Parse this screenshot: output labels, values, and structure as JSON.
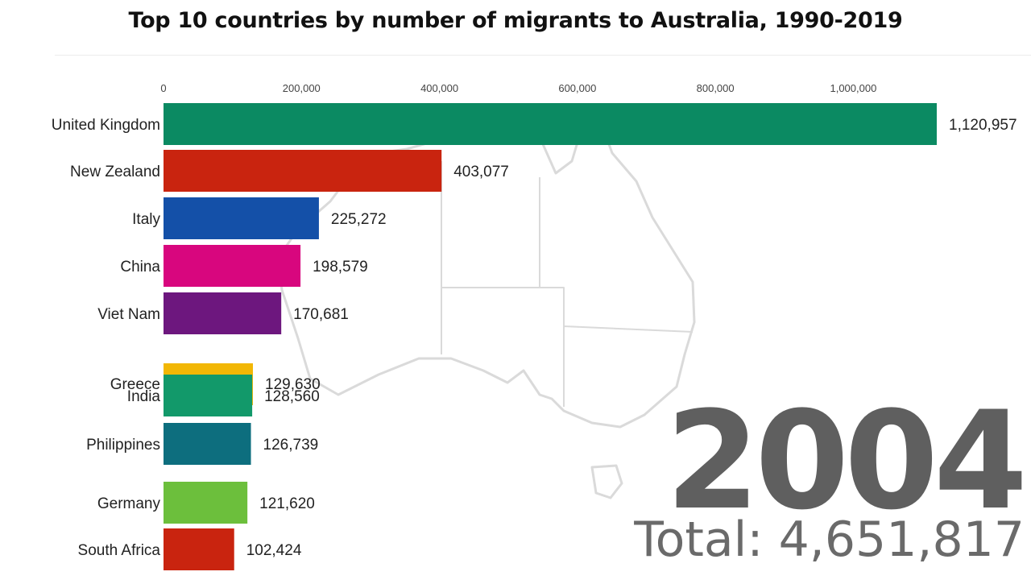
{
  "title": "Top 10 countries by number of migrants to Australia, 1990-2019",
  "year": "2004",
  "total_text": "Total: 4,651,817",
  "chart_data": {
    "type": "bar",
    "orientation": "horizontal",
    "title": "Top 10 countries by number of migrants to Australia, 1990-2019",
    "xlim": [
      0,
      1120957
    ],
    "x_ticks": [
      0,
      200000,
      400000,
      600000,
      800000,
      1000000
    ],
    "x_tick_labels": [
      "0",
      "200,000",
      "400,000",
      "600,000",
      "800,000",
      "1,000,000"
    ],
    "bars": [
      {
        "label": "United Kingdom",
        "value": 1120957,
        "value_label": "1,120,957",
        "color": "#0b8a62"
      },
      {
        "label": "New Zealand",
        "value": 403077,
        "value_label": "403,077",
        "color": "#c9240f"
      },
      {
        "label": "Italy",
        "value": 225272,
        "value_label": "225,272",
        "color": "#1450a8"
      },
      {
        "label": "China",
        "value": 198579,
        "value_label": "198,579",
        "color": "#d8067e"
      },
      {
        "label": "Viet Nam",
        "value": 170681,
        "value_label": "170,681",
        "color": "#6d177e"
      },
      {
        "label": "Greece",
        "value": 129630,
        "value_label": "129,630",
        "color": "#f2b705"
      },
      {
        "label": "India",
        "value": 128560,
        "value_label": "128,560",
        "color": "#12996a"
      },
      {
        "label": "Philippines",
        "value": 126739,
        "value_label": "126,739",
        "color": "#0d6e7e"
      },
      {
        "label": "Germany",
        "value": 121620,
        "value_label": "121,620",
        "color": "#6cbf3c"
      },
      {
        "label": "South Africa",
        "value": 102424,
        "value_label": "102,424",
        "color": "#c9240f"
      }
    ],
    "background_image": "australia-map-outline",
    "grid": false
  }
}
